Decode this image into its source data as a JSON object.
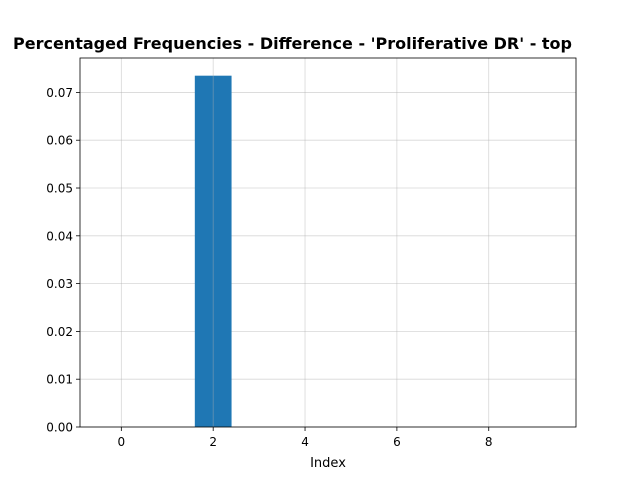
{
  "chart_data": {
    "type": "bar",
    "title": "Percentaged Frequencies - Difference - 'Proliferative DR' - top",
    "xlabel": "Index",
    "ylabel": "",
    "x": [
      0,
      1,
      2,
      3,
      4,
      5,
      6,
      7,
      8,
      9
    ],
    "values": [
      0,
      0,
      0.0735,
      0,
      0,
      0,
      0,
      0,
      0,
      0
    ],
    "xlim": [
      -0.9,
      9.9
    ],
    "ylim": [
      0,
      0.0772
    ],
    "xticks": [
      0,
      2,
      4,
      6,
      8
    ],
    "xtick_labels": [
      "0",
      "2",
      "4",
      "6",
      "8"
    ],
    "yticks": [
      0,
      0.01,
      0.02,
      0.03,
      0.04,
      0.05,
      0.06,
      0.07
    ],
    "ytick_labels": [
      "0.00",
      "0.01",
      "0.02",
      "0.03",
      "0.04",
      "0.05",
      "0.06",
      "0.07"
    ],
    "grid": true,
    "bar_color": "#1f77b4",
    "grid_color": "#b0b0b0"
  }
}
